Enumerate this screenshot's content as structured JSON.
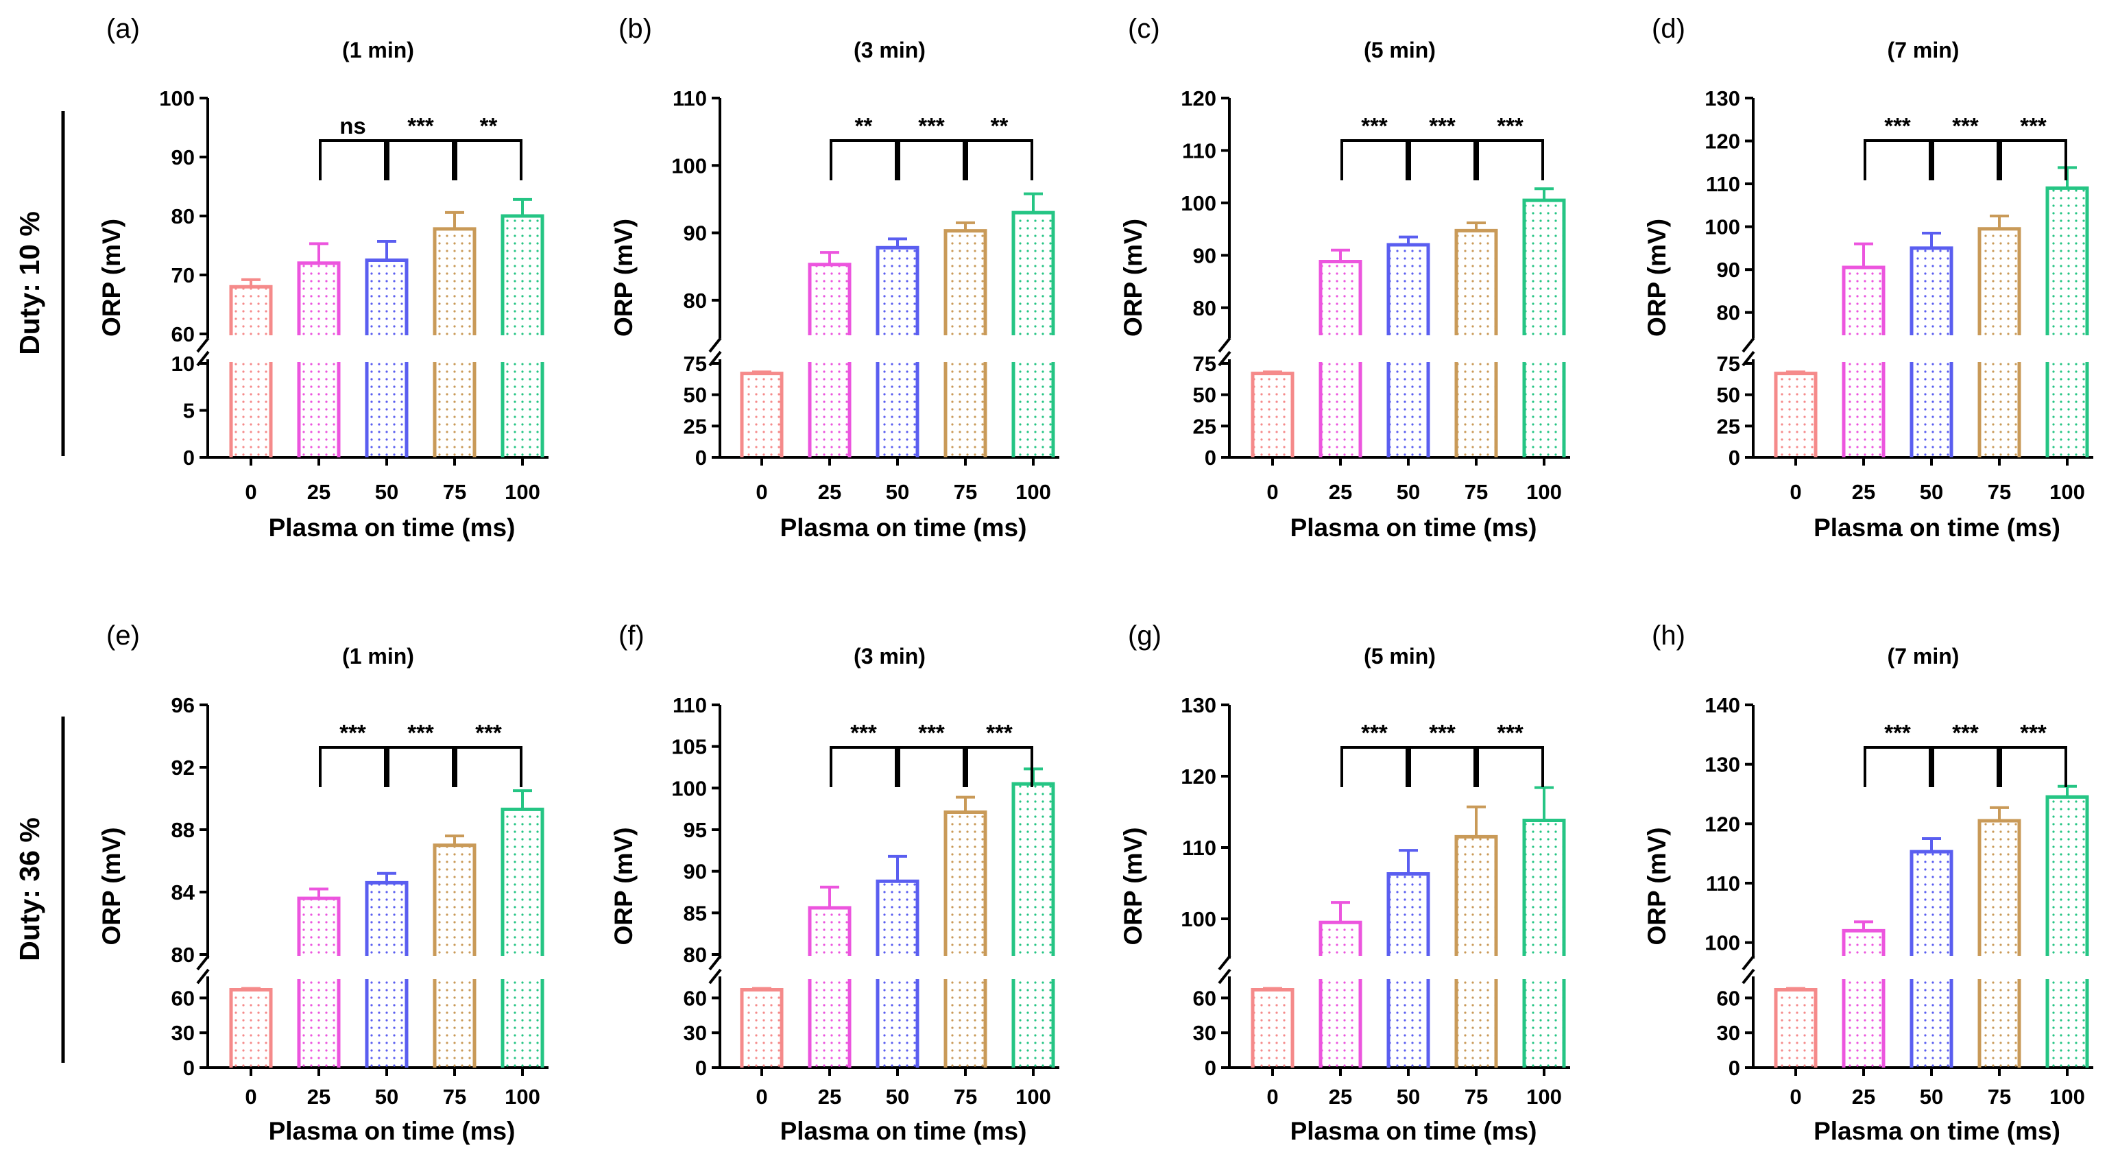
{
  "figure": {
    "duty_labels": [
      "Duty: 10 %",
      "Duty: 36 %"
    ],
    "colors": [
      "#f58a8a",
      "#ec55de",
      "#5a5ef0",
      "#c99a58",
      "#25c584"
    ]
  },
  "chart_data": [
    {
      "panel": "(a)",
      "type": "bar",
      "title": "(1 min)",
      "xlabel": "Plasma on time (ms)",
      "ylabel": "ORP (mV)",
      "categories": [
        "0",
        "25",
        "50",
        "75",
        "100"
      ],
      "values": [
        68,
        72,
        72.5,
        77.8,
        80
      ],
      "errors": [
        1.2,
        3.3,
        3.2,
        2.8,
        2.8
      ],
      "lower_axis": {
        "ylim": [
          0,
          10
        ],
        "ticks": [
          0,
          5,
          10
        ]
      },
      "upper_axis": {
        "ylim": [
          60,
          100
        ],
        "ticks": [
          60,
          70,
          80,
          90,
          100
        ]
      },
      "significance": [
        "ns",
        "***",
        "**"
      ]
    },
    {
      "panel": "(b)",
      "type": "bar",
      "title": "(3 min)",
      "xlabel": "Plasma on time (ms)",
      "ylabel": "ORP (mV)",
      "categories": [
        "0",
        "25",
        "50",
        "75",
        "100"
      ],
      "values": [
        67,
        85.3,
        87.8,
        90.3,
        93
      ],
      "errors": [
        1.2,
        1.8,
        1.3,
        1.2,
        2.8
      ],
      "lower_axis": {
        "ylim": [
          0,
          75
        ],
        "ticks": [
          0,
          25,
          50,
          75
        ]
      },
      "upper_axis": {
        "ylim": [
          75,
          110
        ],
        "ticks": [
          80,
          90,
          100,
          110
        ]
      },
      "significance": [
        "**",
        "***",
        "**"
      ]
    },
    {
      "panel": "(c)",
      "type": "bar",
      "title": "(5 min)",
      "xlabel": "Plasma on time (ms)",
      "ylabel": "ORP (mV)",
      "categories": [
        "0",
        "25",
        "50",
        "75",
        "100"
      ],
      "values": [
        67,
        88.8,
        92,
        94.7,
        100.5
      ],
      "errors": [
        1.2,
        2.2,
        1.5,
        1.5,
        2.2
      ],
      "lower_axis": {
        "ylim": [
          0,
          75
        ],
        "ticks": [
          0,
          25,
          50,
          75
        ]
      },
      "upper_axis": {
        "ylim": [
          75,
          120
        ],
        "ticks": [
          80,
          90,
          100,
          110,
          120
        ]
      },
      "significance": [
        "***",
        "***",
        "***"
      ]
    },
    {
      "panel": "(d)",
      "type": "bar",
      "title": "(7 min)",
      "xlabel": "Plasma on time (ms)",
      "ylabel": "ORP (mV)",
      "categories": [
        "0",
        "25",
        "50",
        "75",
        "100"
      ],
      "values": [
        67,
        90.5,
        95,
        99.5,
        109
      ],
      "errors": [
        1.2,
        5.5,
        3.5,
        3,
        4.8
      ],
      "lower_axis": {
        "ylim": [
          0,
          75
        ],
        "ticks": [
          0,
          25,
          50,
          75
        ]
      },
      "upper_axis": {
        "ylim": [
          75,
          130
        ],
        "ticks": [
          80,
          90,
          100,
          110,
          120,
          130
        ]
      },
      "significance": [
        "***",
        "***",
        "***"
      ]
    },
    {
      "panel": "(e)",
      "type": "bar",
      "title": "(1 min)",
      "xlabel": "Plasma on time (ms)",
      "ylabel": "ORP (mV)",
      "categories": [
        "0",
        "25",
        "50",
        "75",
        "100"
      ],
      "values": [
        67,
        83.6,
        84.6,
        87,
        89.3
      ],
      "errors": [
        1.2,
        0.6,
        0.6,
        0.6,
        1.2
      ],
      "lower_axis": {
        "ylim": [
          0,
          75
        ],
        "ticks": [
          0,
          30,
          60
        ]
      },
      "upper_axis": {
        "ylim": [
          80,
          96
        ],
        "ticks": [
          80,
          84,
          88,
          92,
          96
        ]
      },
      "significance": [
        "***",
        "***",
        "***"
      ]
    },
    {
      "panel": "(f)",
      "type": "bar",
      "title": "(3 min)",
      "xlabel": "Plasma on time (ms)",
      "ylabel": "ORP (mV)",
      "categories": [
        "0",
        "25",
        "50",
        "75",
        "100"
      ],
      "values": [
        67,
        85.6,
        88.8,
        97.1,
        100.5
      ],
      "errors": [
        1.2,
        2.5,
        3,
        1.8,
        1.8
      ],
      "lower_axis": {
        "ylim": [
          0,
          75
        ],
        "ticks": [
          0,
          30,
          60
        ]
      },
      "upper_axis": {
        "ylim": [
          80,
          110
        ],
        "ticks": [
          80,
          85,
          90,
          95,
          100,
          105,
          110
        ]
      },
      "significance": [
        "***",
        "***",
        "***"
      ]
    },
    {
      "panel": "(g)",
      "type": "bar",
      "title": "(5 min)",
      "xlabel": "Plasma on time (ms)",
      "ylabel": "ORP (mV)",
      "categories": [
        "0",
        "25",
        "50",
        "75",
        "100"
      ],
      "values": [
        67,
        99.5,
        106.3,
        111.5,
        113.8
      ],
      "errors": [
        1.2,
        2.8,
        3.3,
        4.2,
        4.6
      ],
      "lower_axis": {
        "ylim": [
          0,
          75
        ],
        "ticks": [
          0,
          30,
          60
        ]
      },
      "upper_axis": {
        "ylim": [
          95,
          130
        ],
        "ticks": [
          100,
          110,
          120,
          130
        ]
      },
      "significance": [
        "***",
        "***",
        "***"
      ]
    },
    {
      "panel": "(h)",
      "type": "bar",
      "title": "(7 min)",
      "xlabel": "Plasma on time (ms)",
      "ylabel": "ORP (mV)",
      "categories": [
        "0",
        "25",
        "50",
        "75",
        "100"
      ],
      "values": [
        67,
        102,
        115.3,
        120.5,
        124.5
      ],
      "errors": [
        1.2,
        1.5,
        2.2,
        2.2,
        1.8
      ],
      "lower_axis": {
        "ylim": [
          0,
          75
        ],
        "ticks": [
          0,
          30,
          60
        ]
      },
      "upper_axis": {
        "ylim": [
          98,
          140
        ],
        "ticks": [
          100,
          110,
          120,
          130,
          140
        ]
      },
      "significance": [
        "***",
        "***",
        "***"
      ]
    }
  ]
}
